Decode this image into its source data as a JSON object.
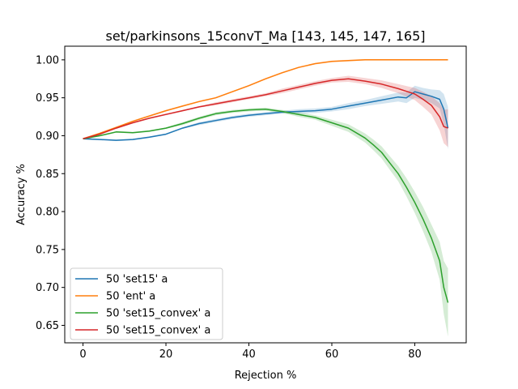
{
  "chart_data": {
    "type": "line",
    "title": "set/parkinsons_15convT_Ma  [143, 145, 147, 165]",
    "xlabel": "Rejection %",
    "ylabel": "Accuracy %",
    "xlim": [
      -4.4,
      92.4
    ],
    "ylim": [
      0.627,
      1.018
    ],
    "xticks": [
      0,
      20,
      40,
      60,
      80
    ],
    "yticks": [
      0.65,
      0.7,
      0.75,
      0.8,
      0.85,
      0.9,
      0.95,
      1.0
    ],
    "ytick_labels": [
      "0.65",
      "0.70",
      "0.75",
      "0.80",
      "0.85",
      "0.90",
      "0.95",
      "1.00"
    ],
    "grid": false,
    "legend_position": "lower-left",
    "series": [
      {
        "name": "50 'set15' a",
        "color": "#1f77b4",
        "x": [
          0,
          4,
          8,
          12,
          16,
          20,
          24,
          28,
          32,
          36,
          40,
          44,
          48,
          52,
          56,
          60,
          64,
          68,
          72,
          76,
          78,
          80,
          82,
          84,
          86,
          87,
          88
        ],
        "y": [
          0.896,
          0.895,
          0.894,
          0.895,
          0.898,
          0.902,
          0.91,
          0.916,
          0.92,
          0.924,
          0.927,
          0.929,
          0.931,
          0.932,
          0.933,
          0.935,
          0.939,
          0.943,
          0.947,
          0.951,
          0.95,
          0.958,
          0.955,
          0.952,
          0.948,
          0.935,
          0.91
        ],
        "band": [
          0.001,
          0.001,
          0.001,
          0.001,
          0.001,
          0.001,
          0.001,
          0.002,
          0.002,
          0.002,
          0.002,
          0.002,
          0.002,
          0.003,
          0.003,
          0.003,
          0.004,
          0.004,
          0.005,
          0.006,
          0.007,
          0.008,
          0.008,
          0.009,
          0.012,
          0.02,
          0.028
        ]
      },
      {
        "name": "50 'ent' a",
        "color": "#ff7f0e",
        "x": [
          0,
          4,
          8,
          12,
          16,
          20,
          24,
          28,
          32,
          36,
          40,
          44,
          48,
          52,
          56,
          60,
          64,
          68,
          72,
          76,
          80,
          84,
          88
        ],
        "y": [
          0.896,
          0.903,
          0.911,
          0.919,
          0.926,
          0.933,
          0.939,
          0.945,
          0.95,
          0.958,
          0.966,
          0.975,
          0.983,
          0.99,
          0.995,
          0.998,
          0.999,
          1.0,
          1.0,
          1.0,
          1.0,
          1.0,
          1.0
        ],
        "band": [
          0.001,
          0.001,
          0.001,
          0.001,
          0.001,
          0.001,
          0.001,
          0.001,
          0.001,
          0.001,
          0.001,
          0.001,
          0.001,
          0.001,
          0.001,
          0.001,
          0.001,
          0.001,
          0.001,
          0.001,
          0.001,
          0.001,
          0.001
        ]
      },
      {
        "name": "50 'set15_convex' a",
        "color": "#2ca02c",
        "x": [
          0,
          4,
          8,
          12,
          16,
          20,
          24,
          28,
          32,
          36,
          40,
          44,
          48,
          52,
          56,
          60,
          64,
          68,
          70,
          72,
          74,
          76,
          78,
          80,
          82,
          84,
          86,
          87,
          88
        ],
        "y": [
          0.896,
          0.9,
          0.905,
          0.904,
          0.906,
          0.91,
          0.916,
          0.923,
          0.929,
          0.932,
          0.934,
          0.935,
          0.932,
          0.928,
          0.924,
          0.917,
          0.91,
          0.897,
          0.888,
          0.878,
          0.864,
          0.85,
          0.832,
          0.812,
          0.79,
          0.765,
          0.735,
          0.7,
          0.68
        ],
        "band": [
          0.001,
          0.001,
          0.001,
          0.001,
          0.001,
          0.001,
          0.002,
          0.002,
          0.002,
          0.002,
          0.002,
          0.002,
          0.002,
          0.003,
          0.003,
          0.004,
          0.005,
          0.006,
          0.007,
          0.008,
          0.009,
          0.01,
          0.012,
          0.014,
          0.016,
          0.018,
          0.025,
          0.035,
          0.045
        ]
      },
      {
        "name": "50 'set15_convex' a",
        "color": "#d62728",
        "x": [
          0,
          4,
          8,
          12,
          16,
          20,
          24,
          28,
          32,
          36,
          40,
          44,
          48,
          52,
          56,
          60,
          64,
          68,
          72,
          76,
          80,
          82,
          84,
          86,
          87,
          88
        ],
        "y": [
          0.896,
          0.902,
          0.91,
          0.917,
          0.923,
          0.928,
          0.933,
          0.938,
          0.942,
          0.946,
          0.95,
          0.954,
          0.959,
          0.964,
          0.969,
          0.973,
          0.975,
          0.972,
          0.968,
          0.962,
          0.955,
          0.948,
          0.94,
          0.925,
          0.912,
          0.91
        ],
        "band": [
          0.001,
          0.001,
          0.001,
          0.001,
          0.001,
          0.001,
          0.001,
          0.001,
          0.002,
          0.002,
          0.002,
          0.002,
          0.003,
          0.003,
          0.003,
          0.003,
          0.004,
          0.004,
          0.005,
          0.006,
          0.008,
          0.01,
          0.012,
          0.018,
          0.022,
          0.025
        ]
      }
    ]
  }
}
